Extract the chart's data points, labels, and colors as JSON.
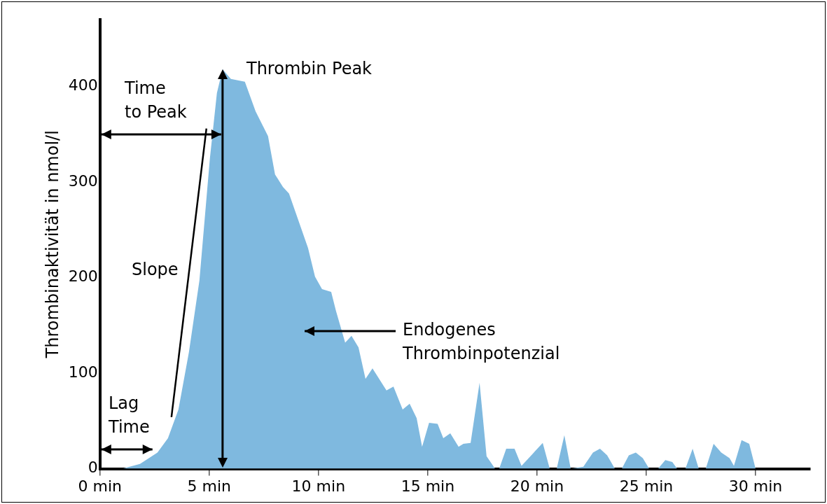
{
  "chart_data": {
    "type": "area",
    "ylabel": "Thrombinaktivität in nmol/l",
    "xlim": [
      0,
      32.5
    ],
    "ylim": [
      0,
      470
    ],
    "xticks": [
      {
        "value": 0,
        "label": "0 min"
      },
      {
        "value": 5,
        "label": "5 min"
      },
      {
        "value": 10,
        "label": "10 min"
      },
      {
        "value": 15,
        "label": "15 min"
      },
      {
        "value": 20,
        "label": "20 min"
      },
      {
        "value": 25,
        "label": "25 min"
      },
      {
        "value": 30,
        "label": "30 min"
      }
    ],
    "yticks": [
      0,
      100,
      200,
      300,
      400
    ],
    "grid": false,
    "legend": false,
    "marker": "none",
    "annotations": [
      "Thrombin Peak",
      "Time\nto Peak",
      "Slope",
      "Lag\nTime",
      "Endogenes\nThrombinpotenzial"
    ],
    "ref_lines": [
      {
        "axis": "x",
        "value": 5.61,
        "color": "#000000"
      }
    ],
    "series": [
      {
        "type": "area",
        "color": "#7fb9df",
        "x": [
          0,
          1.03,
          1.83,
          2.63,
          3.11,
          3.59,
          4.07,
          4.55,
          5.03,
          5.35,
          5.61,
          5.99,
          6.63,
          7.12,
          7.69,
          8.01,
          8.37,
          8.65,
          9.52,
          9.84,
          10.16,
          10.58,
          10.8,
          11.22,
          11.51,
          11.83,
          12.15,
          12.47,
          13.11,
          13.43,
          13.85,
          14.17,
          14.49,
          14.74,
          15.06,
          15.45,
          15.71,
          16.03,
          16.41,
          16.63,
          16.96,
          17.37,
          17.69,
          18.08,
          18.27,
          18.59,
          18.97,
          19.29,
          20.26,
          20.58,
          20.9,
          21.25,
          21.54,
          22.12,
          22.56,
          22.88,
          23.21,
          23.56,
          23.88,
          24.2,
          24.52,
          24.84,
          25.13,
          25.54,
          25.87,
          26.19,
          26.41,
          26.79,
          27.12,
          27.4,
          27.72,
          28.08,
          28.43,
          28.81,
          29.01,
          29.36,
          29.71,
          30
        ],
        "values": [
          0,
          0,
          5,
          17,
          32,
          62,
          122,
          197,
          325,
          393,
          418,
          408,
          405,
          374,
          348,
          308,
          295,
          288,
          231,
          201,
          188,
          185,
          165,
          132,
          139,
          127,
          94,
          105,
          82,
          86,
          62,
          68,
          53,
          23,
          48,
          47,
          32,
          37,
          23,
          26,
          27,
          90,
          13,
          0,
          0,
          21,
          21,
          3,
          27,
          0,
          0,
          35,
          0,
          2,
          17,
          21,
          14,
          0,
          0,
          14,
          17,
          11,
          0,
          0,
          9,
          7,
          0,
          0,
          21,
          0,
          0,
          26,
          17,
          11,
          3,
          30,
          26,
          0
        ]
      },
      {
        "type": "line",
        "color": "#000000",
        "x": [
          3.27,
          4.87
        ],
        "values": [
          54,
          356
        ]
      }
    ]
  }
}
